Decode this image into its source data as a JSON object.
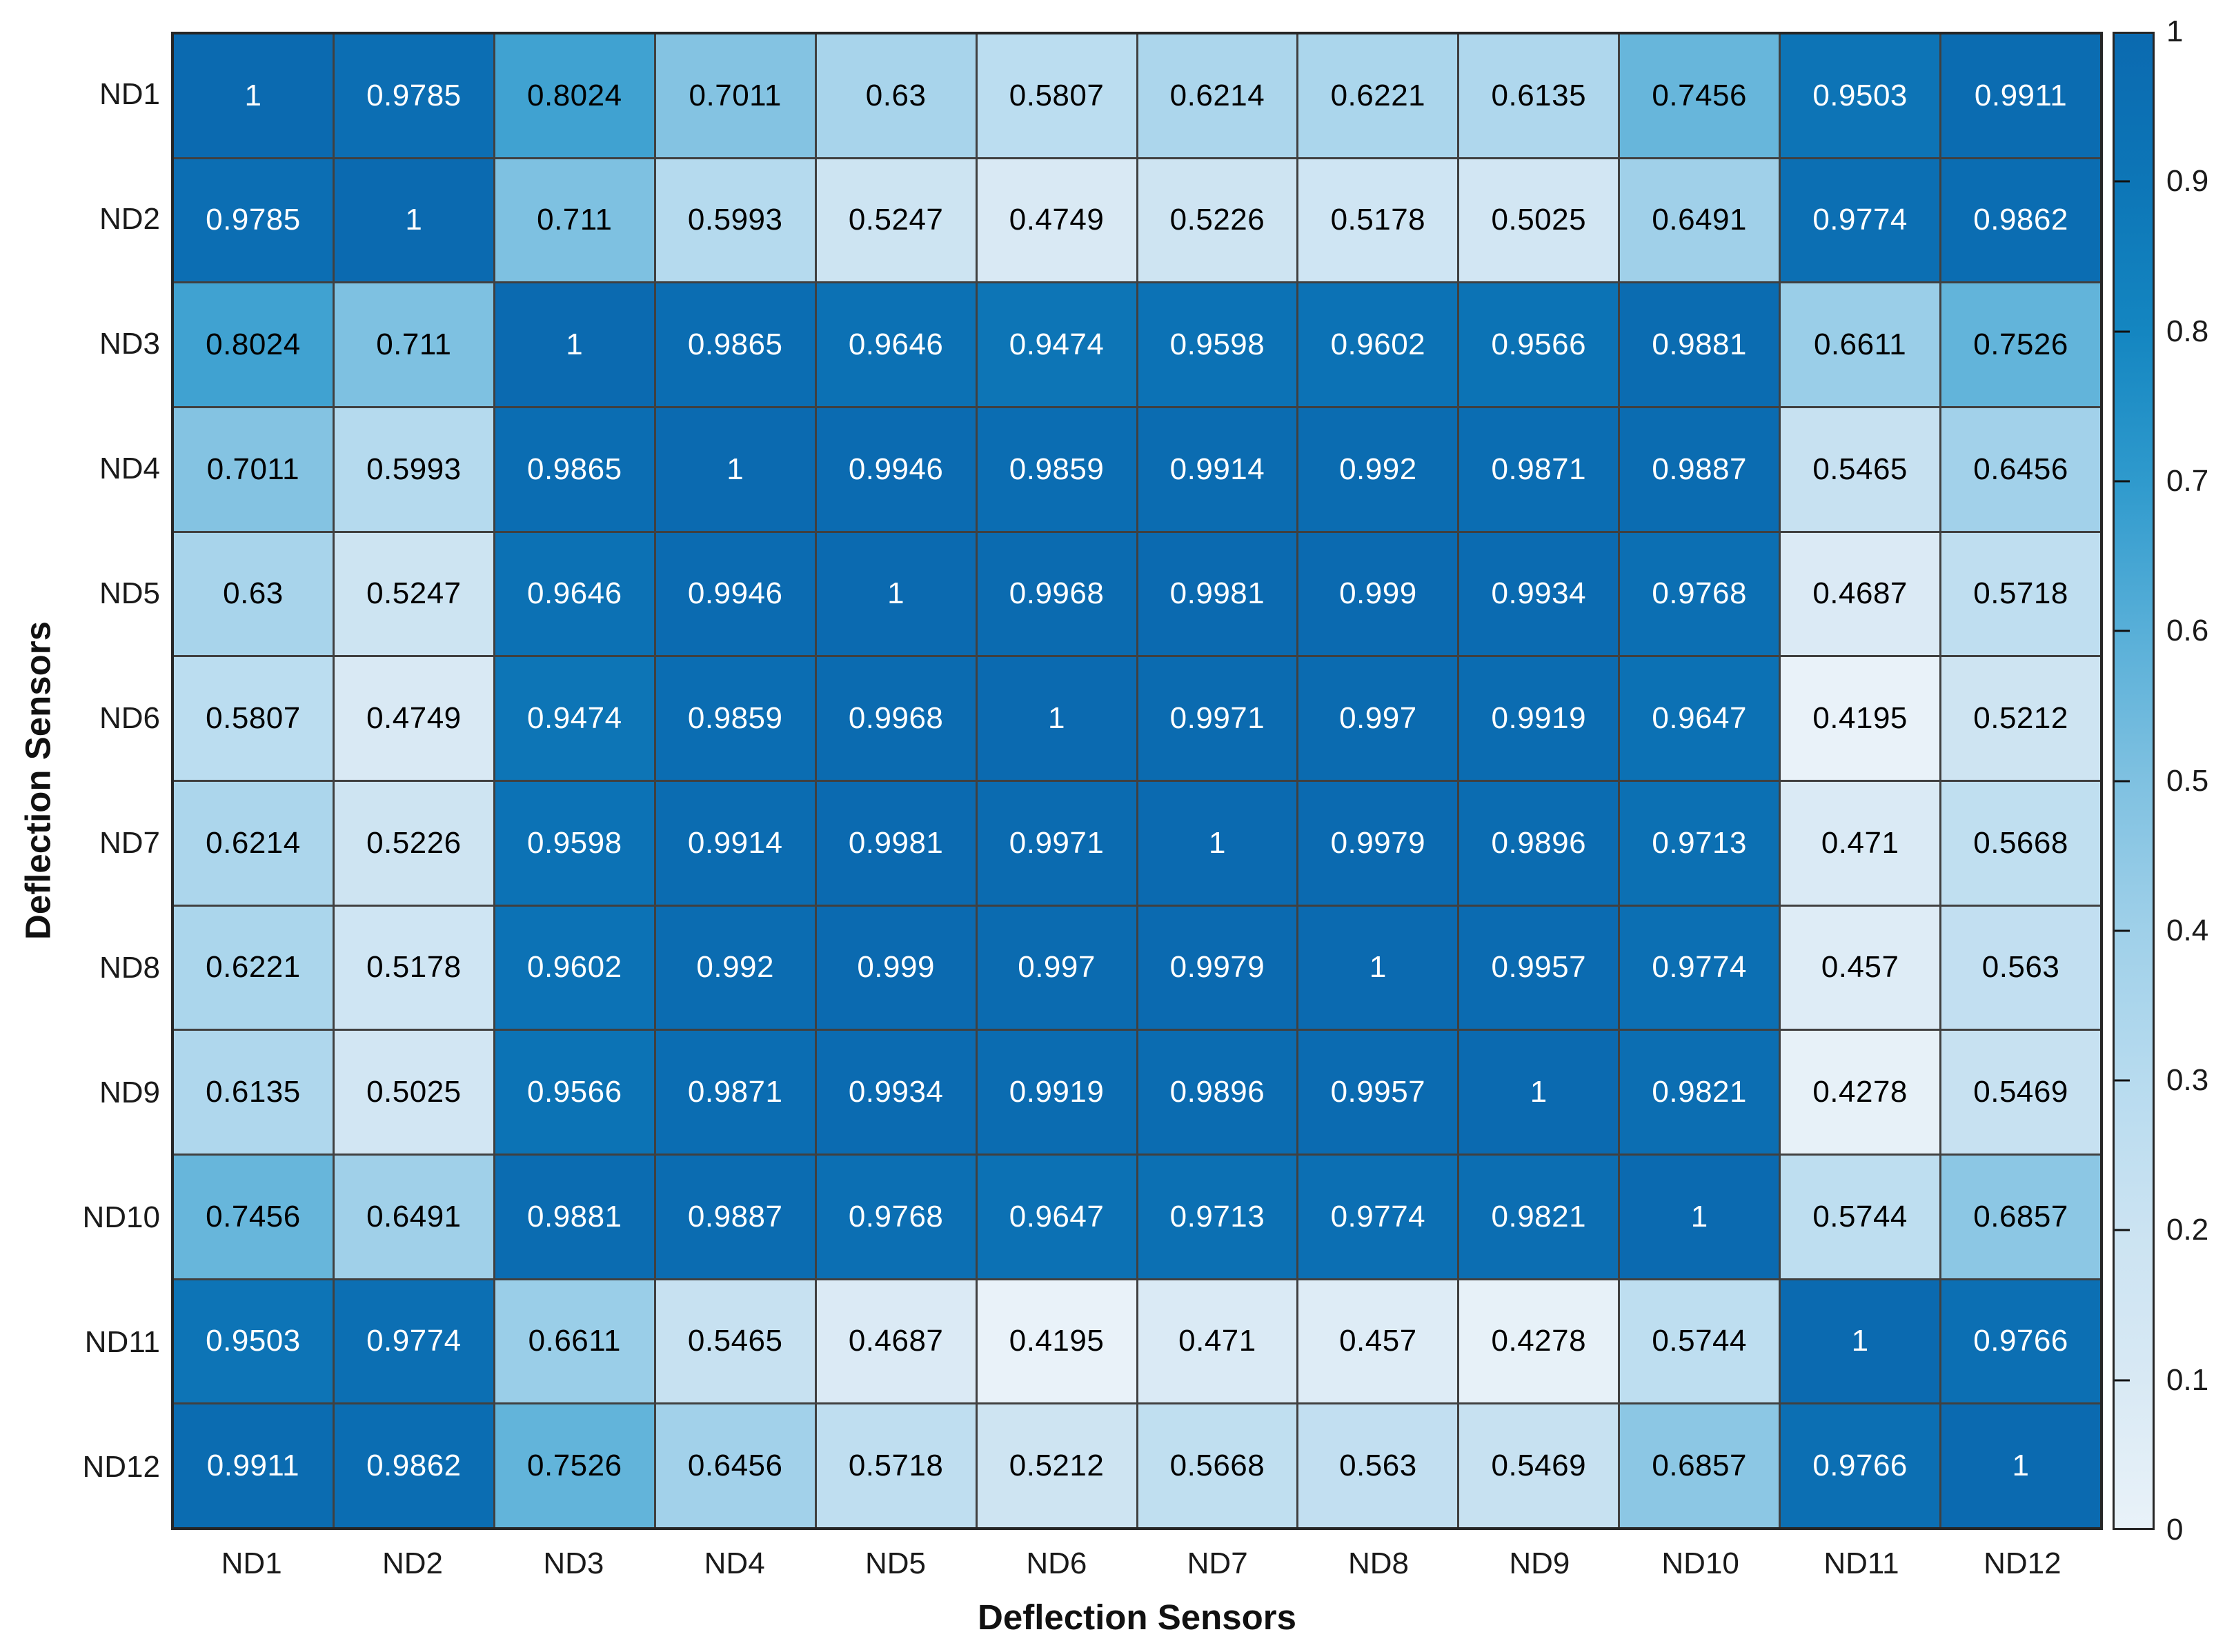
{
  "chart_data": {
    "type": "heatmap",
    "title": "",
    "xlabel": "Deflection Sensors",
    "ylabel": "Deflection Sensors",
    "categories": [
      "ND1",
      "ND2",
      "ND3",
      "ND4",
      "ND5",
      "ND6",
      "ND7",
      "ND8",
      "ND9",
      "ND10",
      "ND11",
      "ND12"
    ],
    "matrix": [
      [
        1,
        0.9785,
        0.8024,
        0.7011,
        0.63,
        0.5807,
        0.6214,
        0.6221,
        0.6135,
        0.7456,
        0.9503,
        0.9911
      ],
      [
        0.9785,
        1,
        0.711,
        0.5993,
        0.5247,
        0.4749,
        0.5226,
        0.5178,
        0.5025,
        0.6491,
        0.9774,
        0.9862
      ],
      [
        0.8024,
        0.711,
        1,
        0.9865,
        0.9646,
        0.9474,
        0.9598,
        0.9602,
        0.9566,
        0.9881,
        0.6611,
        0.7526
      ],
      [
        0.7011,
        0.5993,
        0.9865,
        1,
        0.9946,
        0.9859,
        0.9914,
        0.992,
        0.9871,
        0.9887,
        0.5465,
        0.6456
      ],
      [
        0.63,
        0.5247,
        0.9646,
        0.9946,
        1,
        0.9968,
        0.9981,
        0.999,
        0.9934,
        0.9768,
        0.4687,
        0.5718
      ],
      [
        0.5807,
        0.4749,
        0.9474,
        0.9859,
        0.9968,
        1,
        0.9971,
        0.997,
        0.9919,
        0.9647,
        0.4195,
        0.5212
      ],
      [
        0.6214,
        0.5226,
        0.9598,
        0.9914,
        0.9981,
        0.9971,
        1,
        0.9979,
        0.9896,
        0.9713,
        0.471,
        0.5668
      ],
      [
        0.6221,
        0.5178,
        0.9602,
        0.992,
        0.999,
        0.997,
        0.9979,
        1,
        0.9957,
        0.9774,
        0.457,
        0.563
      ],
      [
        0.6135,
        0.5025,
        0.9566,
        0.9871,
        0.9934,
        0.9919,
        0.9896,
        0.9957,
        1,
        0.9821,
        0.4278,
        0.5469
      ],
      [
        0.7456,
        0.6491,
        0.9881,
        0.9887,
        0.9768,
        0.9647,
        0.9713,
        0.9774,
        0.9821,
        1,
        0.5744,
        0.6857
      ],
      [
        0.9503,
        0.9774,
        0.6611,
        0.5465,
        0.4687,
        0.4195,
        0.471,
        0.457,
        0.4278,
        0.5744,
        1,
        0.9766
      ],
      [
        0.9911,
        0.9862,
        0.7526,
        0.6456,
        0.5718,
        0.5212,
        0.5668,
        0.563,
        0.5469,
        0.6857,
        0.9766,
        1
      ]
    ],
    "colorbar": {
      "position": "right",
      "range": [
        0,
        1
      ],
      "ticks": [
        0,
        0.1,
        0.2,
        0.3,
        0.4,
        0.5,
        0.6,
        0.7,
        0.8,
        0.9,
        1
      ]
    },
    "color_scale": {
      "type": "sequential-blues",
      "stops": [
        "#e9f2f9",
        "#d8e9f4",
        "#cbe3f2",
        "#b7dbef",
        "#9fd0e9",
        "#7fc1e1",
        "#58afd8",
        "#2f9acd",
        "#1486c1",
        "#0d76b7",
        "#0b6ab0"
      ],
      "data_min": 0.4195,
      "data_max": 1,
      "white_text_threshold": 0.8
    },
    "grid": true,
    "legend": "none"
  },
  "styles": {
    "background": "#ffffff",
    "grid_line_color": "#404040",
    "axes_border_color": "#262626",
    "tick_label_color": "#1a1a1a",
    "cell_text_dark": "#000000",
    "cell_text_light": "#ffffff"
  }
}
